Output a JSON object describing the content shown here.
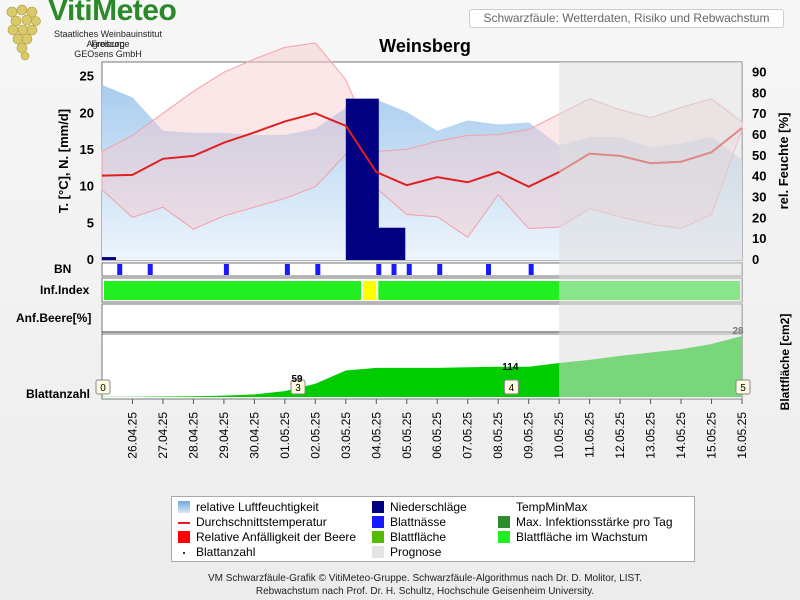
{
  "header": {
    "logo": "VitiMeteo",
    "logo_lines": [
      "Staatliches Weinbauinstitut Freiburg",
      "Agroscope",
      "GEOsens GmbH"
    ],
    "topic": "Schwarzfäule: Wetterdaten, Risiko und Rebwachstum",
    "station": "Weinsberg"
  },
  "colors": {
    "humidity": "#a8cdef",
    "temp_line": "#e02020",
    "temp_band": "#f7c8cc",
    "precip": "#000080",
    "leaf_wetness": "#1a1aff",
    "inf_green": "#22ee22",
    "inf_yellow": "#ffff00",
    "leaf_area": "#00cc00",
    "forecast_shade": "#dedede"
  },
  "chart_data": {
    "type": "line",
    "dates": [
      "26.04.25",
      "27.04.25",
      "28.04.25",
      "29.04.25",
      "30.04.25",
      "01.05.25",
      "02.05.25",
      "03.05.25",
      "04.05.25",
      "05.05.25",
      "06.05.25",
      "07.05.25",
      "08.05.25",
      "09.05.25",
      "10.05.25",
      "11.05.25",
      "12.05.25",
      "13.05.25",
      "14.05.25",
      "15.05.25",
      "16.05.25"
    ],
    "forecast_start": "10.05.25",
    "left_axis": {
      "label": "T. [°C], N. [mm/d]",
      "ticks": [
        0,
        5,
        10,
        15,
        20,
        25
      ],
      "range": [
        0,
        27
      ]
    },
    "right_axis": {
      "label": "rel. Feuchte [%]",
      "ticks": [
        0,
        10,
        20,
        30,
        40,
        50,
        60,
        70,
        80,
        90
      ],
      "range": [
        0,
        95
      ]
    },
    "humidity": [
      {
        "x": 25.0,
        "y": 84
      },
      {
        "x": 26.0,
        "y": 78
      },
      {
        "x": 27.0,
        "y": 62
      },
      {
        "x": 28.0,
        "y": 61
      },
      {
        "x": 29.0,
        "y": 61
      },
      {
        "x": 30.0,
        "y": 60
      },
      {
        "x": 31.0,
        "y": 60
      },
      {
        "x": 32.0,
        "y": 63
      },
      {
        "x": 33.0,
        "y": 73
      },
      {
        "x": 34.0,
        "y": 77
      },
      {
        "x": 35.0,
        "y": 71
      },
      {
        "x": 36.0,
        "y": 62
      },
      {
        "x": 37.0,
        "y": 67
      },
      {
        "x": 38.0,
        "y": 65
      },
      {
        "x": 39.0,
        "y": 66
      },
      {
        "x": 40.0,
        "y": 55
      },
      {
        "x": 41.0,
        "y": 59
      },
      {
        "x": 42.0,
        "y": 59
      },
      {
        "x": 43.0,
        "y": 54
      },
      {
        "x": 44.0,
        "y": 56
      },
      {
        "x": 45.0,
        "y": 59
      },
      {
        "x": 46.0,
        "y": 48
      }
    ],
    "temp_mean": [
      {
        "x": 25.0,
        "y": 11.5
      },
      {
        "x": 26.0,
        "y": 11.6
      },
      {
        "x": 27.0,
        "y": 13.8
      },
      {
        "x": 28.0,
        "y": 14.2
      },
      {
        "x": 29.0,
        "y": 16.0
      },
      {
        "x": 30.0,
        "y": 17.4
      },
      {
        "x": 31.0,
        "y": 18.9
      },
      {
        "x": 32.0,
        "y": 20.0
      },
      {
        "x": 33.0,
        "y": 18.3
      },
      {
        "x": 34.0,
        "y": 12.0
      },
      {
        "x": 35.0,
        "y": 10.2
      },
      {
        "x": 36.0,
        "y": 11.3
      },
      {
        "x": 37.0,
        "y": 10.6
      },
      {
        "x": 38.0,
        "y": 12.0
      },
      {
        "x": 39.0,
        "y": 10.0
      },
      {
        "x": 40.0,
        "y": 12.0
      },
      {
        "x": 41.0,
        "y": 14.5
      },
      {
        "x": 42.0,
        "y": 14.2
      },
      {
        "x": 43.0,
        "y": 13.2
      },
      {
        "x": 44.0,
        "y": 13.4
      },
      {
        "x": 45.0,
        "y": 14.7
      },
      {
        "x": 46.0,
        "y": 18.0
      }
    ],
    "temp_max": [
      {
        "x": 25.0,
        "y": 14.8
      },
      {
        "x": 26.0,
        "y": 17.0
      },
      {
        "x": 27.0,
        "y": 20.0
      },
      {
        "x": 28.0,
        "y": 23.0
      },
      {
        "x": 29.0,
        "y": 25.6
      },
      {
        "x": 30.0,
        "y": 27.4
      },
      {
        "x": 31.0,
        "y": 29.0
      },
      {
        "x": 32.0,
        "y": 29.6
      },
      {
        "x": 33.0,
        "y": 24.6
      },
      {
        "x": 34.0,
        "y": 14.8
      },
      {
        "x": 35.0,
        "y": 15.1
      },
      {
        "x": 36.0,
        "y": 16.2
      },
      {
        "x": 37.0,
        "y": 17.0
      },
      {
        "x": 38.0,
        "y": 17.1
      },
      {
        "x": 39.0,
        "y": 17.8
      },
      {
        "x": 40.0,
        "y": 19.9
      },
      {
        "x": 41.0,
        "y": 22.0
      },
      {
        "x": 42.0,
        "y": 20.5
      },
      {
        "x": 43.0,
        "y": 19.4
      },
      {
        "x": 44.0,
        "y": 20.8
      },
      {
        "x": 45.0,
        "y": 22.0
      },
      {
        "x": 46.0,
        "y": 18.8
      }
    ],
    "temp_min": [
      {
        "x": 25.0,
        "y": 9.6
      },
      {
        "x": 26.0,
        "y": 5.8
      },
      {
        "x": 27.0,
        "y": 7.2
      },
      {
        "x": 28.0,
        "y": 4.2
      },
      {
        "x": 29.0,
        "y": 6.0
      },
      {
        "x": 30.0,
        "y": 7.2
      },
      {
        "x": 31.0,
        "y": 8.4
      },
      {
        "x": 32.0,
        "y": 10.0
      },
      {
        "x": 33.0,
        "y": 14.4
      },
      {
        "x": 34.0,
        "y": 9.8
      },
      {
        "x": 35.0,
        "y": 6.2
      },
      {
        "x": 36.0,
        "y": 5.9
      },
      {
        "x": 37.0,
        "y": 3.1
      },
      {
        "x": 38.0,
        "y": 8.9
      },
      {
        "x": 39.0,
        "y": 4.3
      },
      {
        "x": 40.0,
        "y": 4.5
      },
      {
        "x": 41.0,
        "y": 7.0
      },
      {
        "x": 42.0,
        "y": 5.9
      },
      {
        "x": 43.0,
        "y": 4.9
      },
      {
        "x": 44.0,
        "y": 4.3
      },
      {
        "x": 45.0,
        "y": 6.2
      },
      {
        "x": 46.0,
        "y": 17.8
      }
    ],
    "precipitation": [
      {
        "x": 25.0,
        "y": 0.4
      },
      {
        "x": 33.0,
        "y": 22.0
      },
      {
        "x": 34.0,
        "y": 4.4
      }
    ],
    "leaf_wetness_days": [
      25.5,
      26.5,
      29.0,
      31.0,
      32.0,
      34.0,
      34.5,
      35.0,
      36.0,
      37.6,
      39.0
    ],
    "infection_index": [
      {
        "x": 25.0,
        "y": 0
      },
      {
        "x": 33.5,
        "y": 1
      },
      {
        "x": 34.0,
        "y": 0
      }
    ],
    "leaf_area": [
      {
        "x": 25.0,
        "y": 1
      },
      {
        "x": 26.0,
        "y": 1
      },
      {
        "x": 27.0,
        "y": 2
      },
      {
        "x": 28.0,
        "y": 3
      },
      {
        "x": 29.0,
        "y": 5
      },
      {
        "x": 30.0,
        "y": 10
      },
      {
        "x": 31.0,
        "y": 22
      },
      {
        "x": 32.0,
        "y": 50
      },
      {
        "x": 33.0,
        "y": 100
      },
      {
        "x": 34.0,
        "y": 110
      },
      {
        "x": 35.0,
        "y": 110
      },
      {
        "x": 36.0,
        "y": 110
      },
      {
        "x": 37.0,
        "y": 112
      },
      {
        "x": 38.0,
        "y": 114
      },
      {
        "x": 39.0,
        "y": 114
      },
      {
        "x": 40.0,
        "y": 128
      },
      {
        "x": 41.0,
        "y": 140
      },
      {
        "x": 42.0,
        "y": 155
      },
      {
        "x": 43.0,
        "y": 168
      },
      {
        "x": 44.0,
        "y": 180
      },
      {
        "x": 45.0,
        "y": 200
      },
      {
        "x": 46.0,
        "y": 230
      }
    ],
    "leaf_count_markers": [
      {
        "x": 25.0,
        "label": "0"
      },
      {
        "x": 31.4,
        "label": "3"
      },
      {
        "x": 38.4,
        "label": "4"
      },
      {
        "x": 46.0,
        "label": "5"
      }
    ],
    "leaf_area_labels": [
      {
        "x": 31.4,
        "label": "59"
      },
      {
        "x": 38.4,
        "label": "114"
      },
      {
        "x": 46.0,
        "label": "28"
      }
    ],
    "row_labels": {
      "bn": "BN",
      "inf": "Inf.Index",
      "anf": "Anf.Beere[%]",
      "blatt": "Blattanzahl"
    },
    "leaf_axis_label": "Blattfläche [cm2]"
  },
  "legend": [
    {
      "label": "relative Luftfeuchtigkeit",
      "swatch": "humidity"
    },
    {
      "label": "Niederschläge",
      "swatch": "precip"
    },
    {
      "label": "TempMinMax",
      "swatch": "none"
    },
    {
      "label": "Durchschnittstemperatur",
      "swatch": "line"
    },
    {
      "label": "Blattnässe",
      "swatch": "wet"
    },
    {
      "label": "Max. Infektionsstärke pro Tag",
      "swatch": "infmax"
    },
    {
      "label": "Relative Anfälligkeit der Beere",
      "swatch": "red"
    },
    {
      "label": "Blattfläche",
      "swatch": "leafarea"
    },
    {
      "label": "Blattfläche im Wachstum",
      "swatch": "growing"
    },
    {
      "label": "Blattanzahl",
      "swatch": "dot"
    },
    {
      "label": "Prognose",
      "swatch": "prognose"
    }
  ],
  "footer": [
    "VM Schwarzfäule-Grafik © VitiMeteo-Gruppe. Schwarzfäule-Algorithmus nach Dr. D. Molitor, LIST.",
    "Rebwachstum nach Prof. Dr. H. Schultz, Hochschule Geisenheim University."
  ]
}
